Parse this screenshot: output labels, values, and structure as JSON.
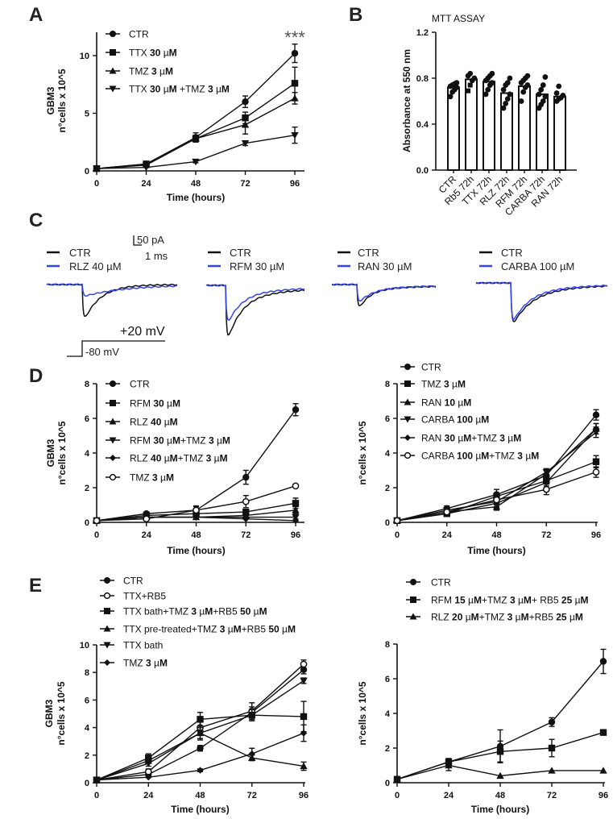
{
  "panels": [
    "A",
    "B",
    "C",
    "D",
    "E"
  ],
  "colors": {
    "ink": "#111111",
    "blue": "#3344ee",
    "star": "#555555"
  },
  "chart_data": [
    {
      "id": "A",
      "type": "line",
      "x": [
        0,
        24,
        48,
        72,
        96
      ],
      "xlabel": "Time (hours)",
      "ylabel": [
        "GBM3",
        "n°cells x 10^5"
      ],
      "ylim": [
        0,
        12
      ],
      "yticks": [
        0,
        5,
        10
      ],
      "annotation": "***",
      "series": [
        {
          "name": "CTR",
          "marker": "circle",
          "values": [
            0.2,
            0.6,
            2.9,
            6.0,
            10.2
          ],
          "err": [
            0.05,
            0.1,
            0.4,
            0.5,
            0.8
          ]
        },
        {
          "name": "TTX 30 µM",
          "marker": "square",
          "values": [
            0.2,
            0.6,
            2.8,
            4.6,
            7.6
          ],
          "err": [
            0.05,
            0.1,
            0.3,
            0.5,
            1.4
          ]
        },
        {
          "name": "TMZ 3 µM",
          "marker": "triangle",
          "values": [
            0.2,
            0.5,
            2.8,
            4.0,
            6.3
          ],
          "err": [
            0.05,
            0.1,
            0.3,
            0.8,
            0.5
          ]
        },
        {
          "name": "TTX 30 µM +TMZ 3 µM",
          "marker": "invtriangle",
          "values": [
            0.2,
            0.3,
            0.8,
            2.4,
            3.1
          ],
          "err": [
            0.05,
            0.05,
            0.1,
            0.2,
            0.7
          ]
        }
      ]
    },
    {
      "id": "B",
      "type": "bar",
      "title": "MTT ASSAY",
      "categories": [
        "CTR",
        "Rb5 72h",
        "TTX 72h",
        "RLZ 72h",
        "RFM 72h",
        "CARBA 72h",
        "RAN 72h"
      ],
      "values": [
        0.72,
        0.79,
        0.77,
        0.67,
        0.73,
        0.66,
        0.64
      ],
      "points": [
        [
          0.64,
          0.68,
          0.7,
          0.72,
          0.73,
          0.74,
          0.75,
          0.76
        ],
        [
          0.69,
          0.74,
          0.78,
          0.8,
          0.82,
          0.84
        ],
        [
          0.66,
          0.7,
          0.74,
          0.76,
          0.78,
          0.8,
          0.82,
          0.84
        ],
        [
          0.54,
          0.58,
          0.62,
          0.66,
          0.7,
          0.74,
          0.76,
          0.8
        ],
        [
          0.6,
          0.68,
          0.72,
          0.74,
          0.76,
          0.78,
          0.8,
          0.82
        ],
        [
          0.54,
          0.57,
          0.6,
          0.64,
          0.66,
          0.7,
          0.74,
          0.81
        ],
        [
          0.6,
          0.62,
          0.63,
          0.65,
          0.67,
          0.73
        ]
      ],
      "ylabel": "Absorbance at 550 nm",
      "ylim": [
        0,
        1.2
      ],
      "yticks": [
        "0.0",
        "0.4",
        "0.8",
        "1.2"
      ]
    },
    {
      "id": "C",
      "type": "line",
      "scalebar": {
        "current": "50 pA",
        "time": "1 ms"
      },
      "protocol": {
        "step": "+20 mV",
        "hold": "-80 mV"
      },
      "groups": [
        {
          "control": "CTR",
          "drug": "RLZ 40 µM",
          "ctr_peak_pA": 167,
          "drug_peak_pA": 50,
          "ctr_tau_ms": 1.7,
          "drug_tau_ms": 4,
          "ctr_steady_pA": 0,
          "drug_steady_pA": 8
        },
        {
          "control": "CTR",
          "drug": "RFM 30 µM",
          "ctr_peak_pA": 208,
          "drug_peak_pA": 146,
          "ctr_tau_ms": 1.5,
          "drug_tau_ms": 1.5,
          "ctr_steady_pA": 55,
          "drug_steady_pA": 38
        },
        {
          "control": "CTR",
          "drug": "RAN 30 µM",
          "ctr_peak_pA": 92,
          "drug_peak_pA": 67,
          "ctr_tau_ms": 1.2,
          "drug_tau_ms": 1.5,
          "ctr_steady_pA": 22,
          "drug_steady_pA": 18
        },
        {
          "control": "CTR",
          "drug": "CARBA 100 µM",
          "ctr_peak_pA": 162,
          "drug_peak_pA": 154,
          "ctr_tau_ms": 2,
          "drug_tau_ms": 1.8,
          "ctr_steady_pA": 40,
          "drug_steady_pA": 35
        }
      ]
    },
    {
      "id": "D-left",
      "type": "line",
      "x": [
        0,
        24,
        48,
        72,
        96
      ],
      "xlabel": "Time (hours)",
      "ylabel": [
        "GBM3",
        "n°cells x 10^5"
      ],
      "ylim": [
        0,
        8
      ],
      "yticks": [
        0,
        2,
        4,
        6,
        8
      ],
      "series": [
        {
          "name": "CTR",
          "marker": "circle",
          "values": [
            0.1,
            0.5,
            0.7,
            2.6,
            6.5
          ],
          "err": [
            0.05,
            0.1,
            0.25,
            0.4,
            0.35
          ]
        },
        {
          "name": "RFM 30 µM",
          "marker": "square",
          "values": [
            0.1,
            0.4,
            0.5,
            0.6,
            1.1
          ],
          "err": [
            0.05,
            0.05,
            0.1,
            0.1,
            0.3
          ]
        },
        {
          "name": "RLZ 40 µM",
          "marker": "triangle",
          "values": [
            0.1,
            0.3,
            0.3,
            0.4,
            0.7
          ],
          "err": [
            0.05,
            0.05,
            0.05,
            0.1,
            0.2
          ]
        },
        {
          "name": "RFM 30 µM+TMZ 3 µM",
          "marker": "invtriangle",
          "values": [
            0.1,
            0.3,
            0.3,
            0.3,
            0.3
          ],
          "err": [
            0.05,
            0.05,
            0.05,
            0.05,
            0.1
          ]
        },
        {
          "name": "RLZ 40 µM+TMZ 3 µM",
          "marker": "diamond",
          "values": [
            0.1,
            0.3,
            0.3,
            0.2,
            0.1
          ],
          "err": [
            0.05,
            0.05,
            0.05,
            0.05,
            0.05
          ]
        },
        {
          "name": "TMZ 3 µM",
          "marker": "open-circle",
          "values": [
            0.1,
            0.2,
            0.7,
            1.2,
            2.1
          ],
          "err": [
            0.05,
            0.05,
            0.2,
            0.35,
            0.1
          ]
        }
      ]
    },
    {
      "id": "D-right",
      "type": "line",
      "x": [
        0,
        24,
        48,
        72,
        96
      ],
      "xlabel": "Time (hours)",
      "ylabel": [
        "n°cells x 10^5"
      ],
      "ylim": [
        0,
        8
      ],
      "yticks": [
        0,
        2,
        4,
        6,
        8
      ],
      "series": [
        {
          "name": "CTR",
          "marker": "circle",
          "values": [
            0.1,
            0.8,
            1.6,
            2.7,
            6.2
          ],
          "err": [
            0.05,
            0.15,
            0.3,
            0.3,
            0.3
          ]
        },
        {
          "name": "TMZ 3 µM",
          "marker": "square",
          "values": [
            0.1,
            0.5,
            1.5,
            2.4,
            3.5
          ],
          "err": [
            0.05,
            0.1,
            0.2,
            0.3,
            0.35
          ]
        },
        {
          "name": "RAN 10 µM",
          "marker": "triangle",
          "values": [
            0.1,
            0.6,
            0.9,
            2.8,
            5.4
          ],
          "err": [
            0.05,
            0.1,
            0.2,
            0.2,
            0.3
          ]
        },
        {
          "name": "CARBA 100 µM",
          "marker": "invtriangle",
          "values": [
            0.1,
            0.7,
            1.2,
            2.9,
            5.2
          ],
          "err": [
            0.05,
            0.1,
            0.2,
            0.2,
            0.3
          ]
        },
        {
          "name": "RAN 30 µM+TMZ 3 µM",
          "marker": "diamond",
          "values": [
            0.1,
            0.5,
            1.1,
            2.3,
            5.4
          ],
          "err": [
            0.05,
            0.1,
            0.2,
            0.3,
            0.3
          ]
        },
        {
          "name": "CARBA 100 µM+TMZ 3 µM",
          "marker": "open-circle",
          "values": [
            0.1,
            0.6,
            1.3,
            1.9,
            2.9
          ],
          "err": [
            0.05,
            0.1,
            0.2,
            0.3,
            0.3
          ]
        }
      ]
    },
    {
      "id": "E-left",
      "type": "line",
      "x": [
        0,
        24,
        48,
        72,
        96
      ],
      "xlabel": "Time (hours)",
      "ylabel": [
        "GBM3",
        "n°cells x 10^5"
      ],
      "ylim": [
        0,
        10
      ],
      "yticks": [
        0,
        2,
        4,
        6,
        8,
        10
      ],
      "series": [
        {
          "name": "CTR",
          "marker": "circle",
          "values": [
            0.2,
            0.6,
            2.5,
            5.1,
            8.2
          ],
          "err": [
            0.05,
            0.1,
            0.2,
            0.4,
            0.3
          ]
        },
        {
          "name": "TTX+RB5",
          "marker": "open-circle",
          "values": [
            0.2,
            0.8,
            4.0,
            5.2,
            8.6
          ],
          "err": [
            0.05,
            0.2,
            0.4,
            0.6,
            0.3
          ]
        },
        {
          "name": "TTX bath+TMZ 3 µM+RB5 50 µM",
          "marker": "square",
          "values": [
            0.2,
            1.8,
            4.6,
            4.9,
            4.8
          ],
          "err": [
            0.05,
            0.3,
            0.5,
            0.4,
            1.1
          ]
        },
        {
          "name": "TTX pre-treated+TMZ 3 µM+RB5 50 µM",
          "marker": "triangle",
          "values": [
            0.2,
            1.6,
            3.6,
            1.8,
            1.2
          ],
          "err": [
            0.05,
            0.2,
            0.5,
            0.2,
            0.3
          ]
        },
        {
          "name": "TTX bath",
          "marker": "invtriangle",
          "values": [
            0.2,
            1.4,
            3.6,
            4.9,
            7.4
          ],
          "err": [
            0.05,
            0.2,
            0.4,
            0.4,
            0.2
          ]
        },
        {
          "name": "TMZ 3 µM",
          "marker": "diamond",
          "values": [
            0.2,
            0.4,
            0.9,
            2.1,
            3.6
          ],
          "err": [
            0.05,
            0.05,
            0.1,
            0.4,
            0.6
          ]
        }
      ]
    },
    {
      "id": "E-right",
      "type": "line",
      "x": [
        0,
        24,
        48,
        72,
        96
      ],
      "xlabel": "Time (hours)",
      "ylabel": [
        "n°cells x 10^5"
      ],
      "ylim": [
        0,
        8
      ],
      "yticks": [
        0,
        2,
        4,
        6,
        8
      ],
      "series": [
        {
          "name": "CTR",
          "marker": "circle",
          "values": [
            0.2,
            1.2,
            2.1,
            3.5,
            7.0
          ],
          "err": [
            0.05,
            0.2,
            0.95,
            0.25,
            0.7
          ]
        },
        {
          "name": "RFM 15 µM+TMZ 3 µM+ RB5 25 µM",
          "marker": "square",
          "values": [
            0.2,
            1.2,
            1.8,
            2.0,
            2.9
          ],
          "err": [
            0.05,
            0.15,
            0.6,
            0.5,
            0.1
          ]
        },
        {
          "name": "RLZ 20 µM+TMZ 3 µM+RB5 25 µM",
          "marker": "triangle",
          "values": [
            0.2,
            1.0,
            0.4,
            0.7,
            0.7
          ],
          "err": [
            0.05,
            0.3,
            0.05,
            0.05,
            0.05
          ]
        }
      ]
    }
  ]
}
